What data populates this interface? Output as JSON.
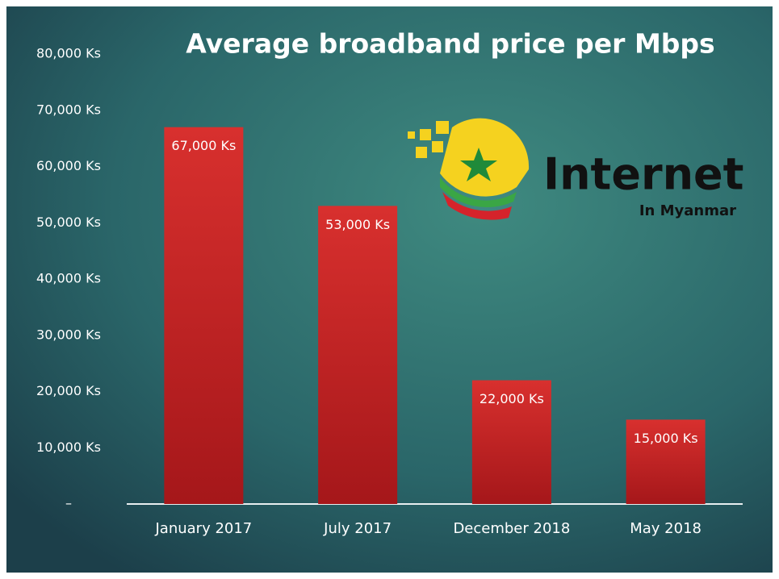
{
  "chart_data": {
    "type": "bar",
    "title": "Average broadband price per Mbps",
    "categories": [
      "January 2017",
      "July 2017",
      "December 2018",
      "May 2018"
    ],
    "values": [
      67000,
      53000,
      22000,
      15000
    ],
    "value_labels": [
      "67,000 Ks",
      "53,000 Ks",
      "22,000 Ks",
      "15,000 Ks"
    ],
    "color": "#cf2a2a",
    "ylim": [
      0,
      80000
    ],
    "yticks": [
      {
        "value": 0,
        "label": "–"
      },
      {
        "value": 10000,
        "label": "10,000 Ks"
      },
      {
        "value": 20000,
        "label": "20,000 Ks"
      },
      {
        "value": 30000,
        "label": "30,000 Ks"
      },
      {
        "value": 40000,
        "label": "40,000 Ks"
      },
      {
        "value": 50000,
        "label": "50,000 Ks"
      },
      {
        "value": 60000,
        "label": "60,000 Ks"
      },
      {
        "value": 70000,
        "label": "70,000 Ks"
      },
      {
        "value": 80000,
        "label": "80,000 Ks"
      }
    ],
    "grid": false
  },
  "logo": {
    "text": "Internet",
    "subtitle": "In Myanmar"
  }
}
